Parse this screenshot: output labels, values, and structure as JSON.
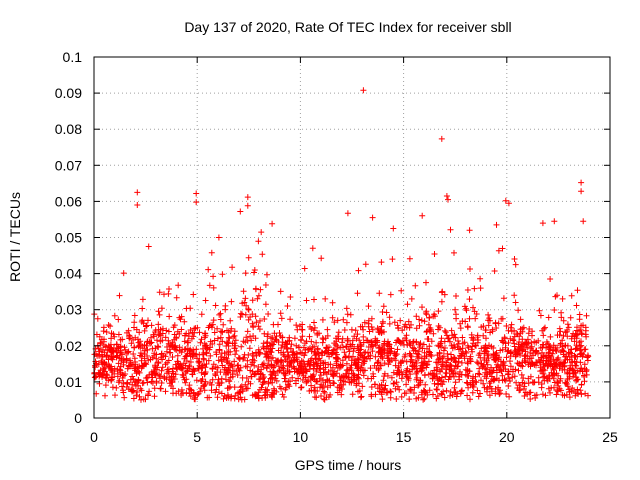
{
  "chart_data": {
    "type": "scatter",
    "title": "Day 137 of 2020, Rate Of TEC Index for receiver sbll",
    "xlabel": "GPS time / hours",
    "ylabel": "ROTI / TECUs",
    "xlim": [
      0,
      25
    ],
    "ylim": [
      0,
      0.1
    ],
    "xticks": [
      0,
      5,
      10,
      15,
      20,
      25
    ],
    "xtick_labels": [
      "0",
      "5",
      "10",
      "15",
      "20",
      "25"
    ],
    "yticks": [
      0,
      0.01,
      0.02,
      0.03,
      0.04,
      0.05,
      0.06,
      0.07,
      0.08,
      0.09,
      0.1
    ],
    "ytick_labels": [
      "0",
      "0.01",
      "0.02",
      "0.03",
      "0.04",
      "0.05",
      "0.06",
      "0.07",
      "0.08",
      "0.09",
      "0.1"
    ],
    "grid": true,
    "marker": "+",
    "marker_color": "#ff0000",
    "data_range_hours": [
      0,
      23.95
    ],
    "typical_band": [
      0.008,
      0.028
    ],
    "outliers": [
      {
        "x": 2.1,
        "y": 0.0625
      },
      {
        "x": 2.1,
        "y": 0.059
      },
      {
        "x": 4.95,
        "y": 0.0622
      },
      {
        "x": 4.95,
        "y": 0.0598
      },
      {
        "x": 7.45,
        "y": 0.0612
      },
      {
        "x": 7.45,
        "y": 0.0588
      },
      {
        "x": 12.3,
        "y": 0.0567
      },
      {
        "x": 13.05,
        "y": 0.0908
      },
      {
        "x": 16.85,
        "y": 0.0773
      },
      {
        "x": 17.1,
        "y": 0.0615
      },
      {
        "x": 17.15,
        "y": 0.0605
      },
      {
        "x": 13.5,
        "y": 0.0555
      },
      {
        "x": 15.9,
        "y": 0.056
      },
      {
        "x": 19.95,
        "y": 0.0602
      },
      {
        "x": 20.1,
        "y": 0.0595
      },
      {
        "x": 21.75,
        "y": 0.054
      },
      {
        "x": 22.3,
        "y": 0.0545
      },
      {
        "x": 23.6,
        "y": 0.0652
      },
      {
        "x": 23.6,
        "y": 0.0628
      },
      {
        "x": 23.7,
        "y": 0.0545
      },
      {
        "x": 18.2,
        "y": 0.052
      },
      {
        "x": 8.1,
        "y": 0.0515
      },
      {
        "x": 6.05,
        "y": 0.05
      },
      {
        "x": 2.65,
        "y": 0.0475
      },
      {
        "x": 10.6,
        "y": 0.047
      },
      {
        "x": 14.5,
        "y": 0.0525
      },
      {
        "x": 19.5,
        "y": 0.0535
      },
      {
        "x": 22.1,
        "y": 0.0385
      }
    ]
  }
}
